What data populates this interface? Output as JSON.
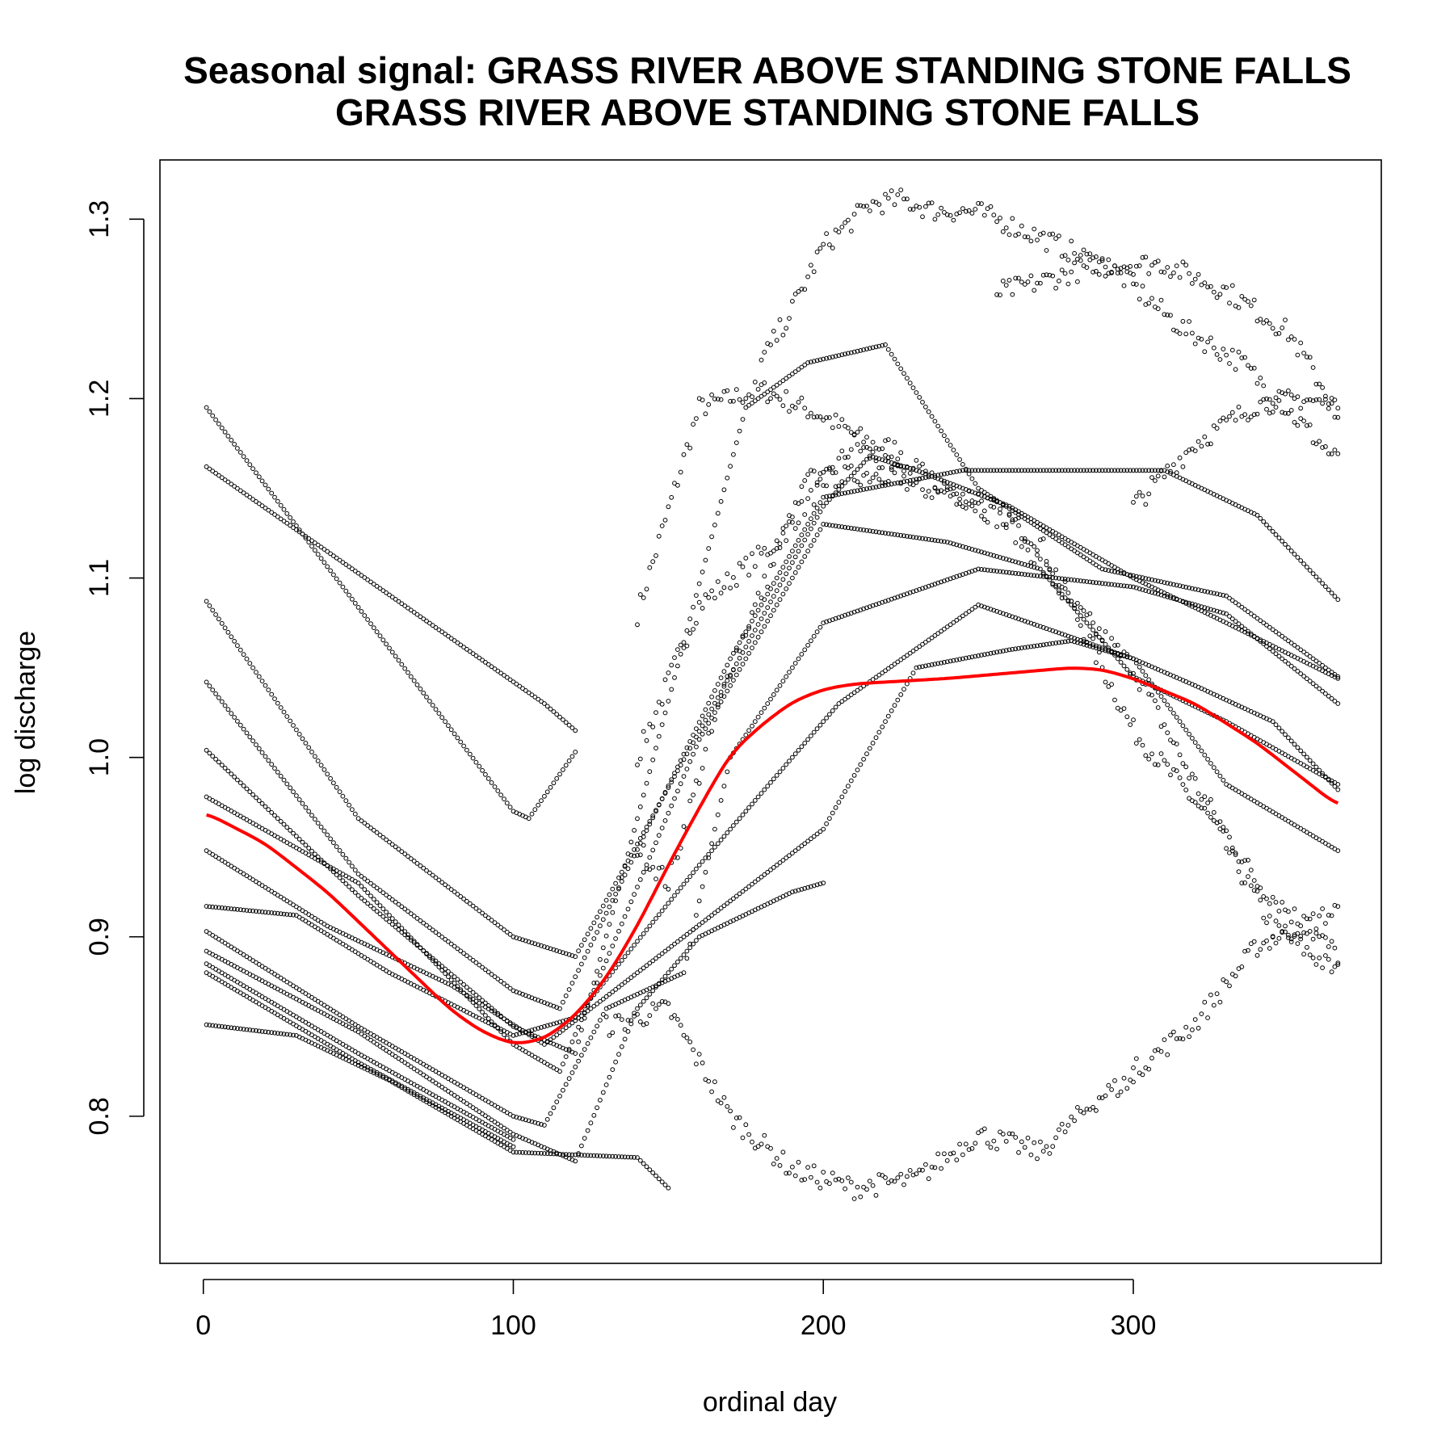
{
  "chart_data": {
    "type": "scatter",
    "title": "Seasonal signal: GRASS RIVER ABOVE STANDING STONE FALLS",
    "subtitle": "GRASS RIVER ABOVE STANDING STONE FALLS",
    "xlabel": "ordinal day",
    "ylabel": "log discharge",
    "xlim": [
      -14,
      380
    ],
    "ylim": [
      0.718,
      1.333
    ],
    "xticks": [
      0,
      100,
      200,
      300
    ],
    "yticks": [
      0.8,
      0.9,
      1.0,
      1.1,
      1.2,
      1.3
    ],
    "xtick_labels": [
      "0",
      "100",
      "200",
      "300"
    ],
    "ytick_labels": [
      "0.8",
      "0.9",
      "1.0",
      "1.1",
      "1.2",
      "1.3"
    ],
    "grid": false,
    "legend": "none",
    "point_color": "#000000",
    "fit_color": "#ff0000",
    "fit_curve": {
      "x": [
        1,
        20,
        40,
        60,
        80,
        90,
        100,
        110,
        120,
        130,
        140,
        150,
        160,
        170,
        180,
        190,
        200,
        210,
        220,
        240,
        260,
        280,
        290,
        300,
        320,
        340,
        366
      ],
      "y": [
        0.969,
        0.952,
        0.925,
        0.892,
        0.859,
        0.847,
        0.84,
        0.843,
        0.856,
        0.877,
        0.906,
        0.94,
        0.972,
        1.002,
        1.018,
        1.031,
        1.038,
        1.041,
        1.042,
        1.044,
        1.047,
        1.05,
        1.049,
        1.044,
        1.03,
        1.008,
        0.973
      ]
    },
    "series": [
      {
        "x": [
          1,
          100,
          105,
          120
        ],
        "y": [
          1.195,
          0.97,
          0.966,
          1.003
        ]
      },
      {
        "x": [
          1,
          110,
          120
        ],
        "y": [
          1.162,
          1.03,
          1.015
        ]
      },
      {
        "x": [
          1,
          50,
          100,
          120,
          200,
          215,
          230,
          260,
          300,
          330,
          366
        ],
        "y": [
          1.087,
          0.966,
          0.9,
          0.889,
          1.14,
          1.168,
          1.16,
          1.14,
          1.1,
          1.075,
          1.044
        ]
      },
      {
        "x": [
          1,
          50,
          100,
          115,
          170,
          200,
          245,
          285,
          310,
          340,
          366
        ],
        "y": [
          1.042,
          0.935,
          0.87,
          0.86,
          1.055,
          1.145,
          1.16,
          1.16,
          1.16,
          1.135,
          1.088
        ]
      },
      {
        "x": [
          1,
          50,
          100,
          120,
          175,
          195,
          220,
          250,
          290,
          330,
          366
        ],
        "y": [
          1.004,
          0.923,
          0.85,
          0.835,
          1.195,
          1.22,
          1.23,
          1.15,
          1.105,
          1.09,
          1.045
        ]
      },
      {
        "x": [
          1,
          50,
          100,
          115,
          160,
          200,
          240,
          270,
          300,
          330,
          366
        ],
        "y": [
          0.978,
          0.93,
          0.84,
          0.825,
          1.01,
          1.13,
          1.12,
          1.105,
          1.045,
          1.02,
          0.985
        ]
      },
      {
        "x": [
          1,
          40,
          80,
          110,
          200,
          230,
          260,
          280,
          300,
          320,
          345,
          366
        ],
        "y": [
          0.948,
          0.906,
          0.873,
          0.84,
          0.96,
          1.05,
          1.06,
          1.065,
          1.055,
          1.04,
          1.02,
          0.982
        ]
      },
      {
        "x": [
          1,
          30,
          60,
          100,
          120,
          160,
          205,
          250,
          300,
          330,
          366
        ],
        "y": [
          0.917,
          0.912,
          0.88,
          0.845,
          0.855,
          0.94,
          1.03,
          1.085,
          1.055,
          0.985,
          0.948
        ]
      },
      {
        "x": [
          1,
          50,
          100,
          110,
          130,
          155,
          170,
          200,
          250,
          300,
          330,
          366
        ],
        "y": [
          0.903,
          0.85,
          0.8,
          0.795,
          0.86,
          0.88,
          1.0,
          1.075,
          1.105,
          1.095,
          1.08,
          1.03
        ]
      },
      {
        "x": [
          1,
          50,
          100,
          120,
          140,
          160,
          190,
          200
        ],
        "y": [
          0.892,
          0.847,
          0.79,
          0.775,
          0.86,
          0.9,
          0.925,
          0.93
        ]
      },
      {
        "x": [
          1,
          50,
          100
        ],
        "y": [
          0.885,
          0.835,
          0.787
        ]
      },
      {
        "x": [
          1,
          50,
          100
        ],
        "y": [
          0.88,
          0.83,
          0.783
        ]
      },
      {
        "x": [
          1,
          30,
          60,
          100,
          140,
          150
        ],
        "y": [
          0.851,
          0.845,
          0.82,
          0.78,
          0.777,
          0.76
        ]
      },
      {
        "x": [
          140,
          160,
          180,
          200,
          215,
          225
        ],
        "y": [
          1.08,
          1.195,
          1.205,
          1.19,
          1.175,
          1.171
        ]
      },
      {
        "x": [
          140,
          160,
          185,
          210,
          230,
          250,
          270,
          300,
          325,
          345,
          366
        ],
        "y": [
          1.0,
          1.085,
          1.12,
          1.175,
          1.15,
          1.145,
          1.12,
          1.015,
          0.965,
          0.905,
          0.88
        ]
      },
      {
        "x": [
          140,
          150,
          170,
          195,
          230,
          260,
          280,
          300,
          320,
          340,
          366
        ],
        "y": [
          0.95,
          0.93,
          1.05,
          1.155,
          1.16,
          1.13,
          1.085,
          1.05,
          0.985,
          0.93,
          0.89
        ]
      },
      {
        "x": [
          180,
          190,
          200,
          215,
          225,
          235,
          250,
          270,
          295,
          315,
          335,
          366
        ],
        "y": [
          1.22,
          1.25,
          1.285,
          1.308,
          1.311,
          1.305,
          1.304,
          1.29,
          1.27,
          1.24,
          1.22,
          1.165
        ]
      },
      {
        "x": [
          256,
          270,
          290,
          310,
          330,
          350,
          366
        ],
        "y": [
          1.259,
          1.265,
          1.275,
          1.275,
          1.26,
          1.237,
          1.193
        ]
      },
      {
        "x": [
          300,
          320,
          340,
          355,
          366
        ],
        "y": [
          1.14,
          1.175,
          1.197,
          1.2,
          1.195
        ]
      },
      {
        "x": [
          300,
          320,
          340,
          366
        ],
        "y": [
          0.825,
          0.852,
          0.895,
          0.915
        ]
      },
      {
        "x": [
          130,
          150,
          170,
          190,
          210,
          230,
          250,
          270,
          290,
          300
        ],
        "y": [
          0.85,
          0.86,
          0.8,
          0.77,
          0.76,
          0.765,
          0.79,
          0.78,
          0.812,
          0.82
        ]
      }
    ]
  }
}
